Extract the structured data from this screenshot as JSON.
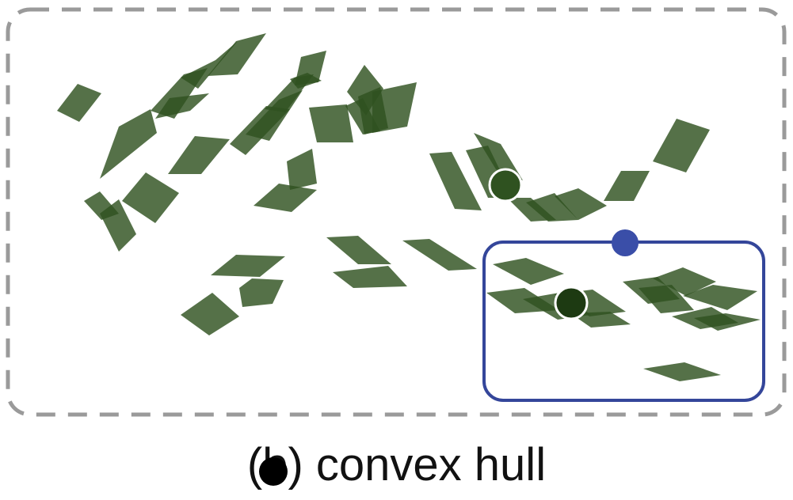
{
  "colors": {
    "outer_frame": "#9a9a9a",
    "hull_box": "#34469a",
    "hull_handle": "#3a4ea8",
    "tile": "#2f5220",
    "centroid_outline": "#ffffff",
    "centroid_selected": "#1d3a12"
  },
  "caption": {
    "text": "(b) convex hull"
  },
  "legend_markers": [
    "black-dot"
  ]
}
